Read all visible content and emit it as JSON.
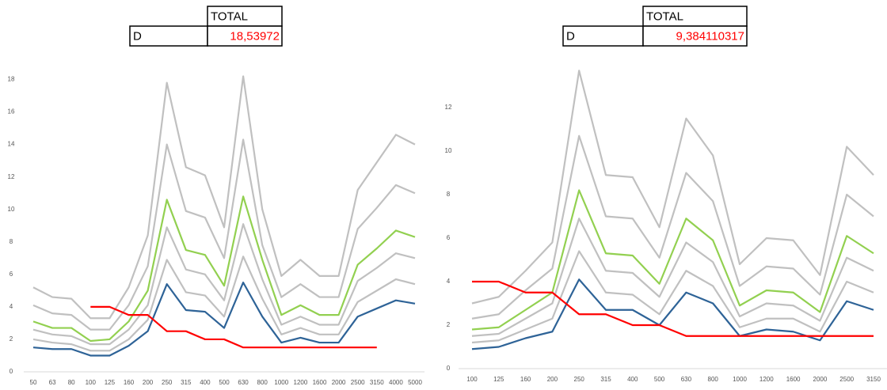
{
  "chart_data": [
    {
      "type": "line",
      "table": {
        "header": "TOTAL",
        "row": "D",
        "value": "18,53972",
        "value_color": "#ff0000"
      },
      "categories": [
        "50",
        "63",
        "80",
        "100",
        "125",
        "160",
        "200",
        "250",
        "315",
        "400",
        "500",
        "630",
        "800",
        "1000",
        "1200",
        "1600",
        "2000",
        "2500",
        "3150",
        "4000",
        "5000"
      ],
      "ylim": [
        0,
        19
      ],
      "yticks": [
        0,
        2,
        4,
        6,
        8,
        10,
        12,
        14,
        16,
        18
      ],
      "grid": false,
      "series": [
        {
          "color": "#c0c0c0",
          "values": [
            5.2,
            4.6,
            4.5,
            3.3,
            3.3,
            5.2,
            8.4,
            17.8,
            12.6,
            12.1,
            8.9,
            18.2,
            10.0,
            5.9,
            6.9,
            5.9,
            5.9,
            11.2,
            12.9,
            14.6,
            14.0
          ]
        },
        {
          "color": "#c0c0c0",
          "values": [
            4.1,
            3.6,
            3.5,
            2.6,
            2.6,
            4.1,
            6.5,
            14.0,
            9.9,
            9.5,
            7.0,
            14.3,
            7.8,
            4.6,
            5.4,
            4.6,
            4.6,
            8.8,
            10.1,
            11.5,
            11.0
          ]
        },
        {
          "color": "#92d050",
          "values": [
            3.1,
            2.7,
            2.7,
            1.9,
            2.0,
            3.1,
            5.0,
            10.6,
            7.5,
            7.2,
            5.3,
            10.8,
            6.9,
            3.5,
            4.1,
            3.5,
            3.5,
            6.6,
            7.6,
            8.7,
            8.3
          ]
        },
        {
          "color": "#c0c0c0",
          "values": [
            2.6,
            2.3,
            2.2,
            1.7,
            1.7,
            2.6,
            4.1,
            8.9,
            6.3,
            6.0,
            4.4,
            9.1,
            5.7,
            2.9,
            3.4,
            2.9,
            2.9,
            5.6,
            6.4,
            7.3,
            7.0
          ]
        },
        {
          "color": "#c0c0c0",
          "values": [
            2.0,
            1.8,
            1.7,
            1.3,
            1.3,
            2.0,
            3.2,
            6.9,
            4.9,
            4.7,
            3.4,
            7.1,
            4.5,
            2.3,
            2.7,
            2.3,
            2.3,
            4.3,
            5.0,
            5.7,
            5.4
          ]
        },
        {
          "color": "#2e6397",
          "values": [
            1.5,
            1.4,
            1.4,
            1.0,
            1.0,
            1.6,
            2.5,
            5.4,
            3.8,
            3.7,
            2.7,
            5.5,
            3.4,
            1.8,
            2.1,
            1.8,
            1.8,
            3.4,
            3.9,
            4.4,
            4.2
          ]
        },
        {
          "color": "#ff0000",
          "values": [
            null,
            null,
            null,
            4,
            4,
            3.5,
            3.5,
            2.5,
            2.5,
            2,
            2,
            1.5,
            1.5,
            1.5,
            1.5,
            1.5,
            1.5,
            1.5,
            1.5,
            null,
            null
          ]
        }
      ]
    },
    {
      "type": "line",
      "table": {
        "header": "TOTAL",
        "row": "D",
        "value": "9,384110317",
        "value_color": "#ff0000"
      },
      "categories": [
        "100",
        "125",
        "160",
        "200",
        "250",
        "315",
        "400",
        "500",
        "630",
        "800",
        "1000",
        "1200",
        "1600",
        "2000",
        "2500",
        "3150"
      ],
      "ylim": [
        0,
        14
      ],
      "yticks": [
        0,
        2,
        4,
        6,
        8,
        10,
        12
      ],
      "grid": false,
      "series": [
        {
          "color": "#c0c0c0",
          "values": [
            3.0,
            3.3,
            4.5,
            5.8,
            13.7,
            8.9,
            8.8,
            6.5,
            11.5,
            9.8,
            4.8,
            6.0,
            5.9,
            4.3,
            10.2,
            8.9
          ]
        },
        {
          "color": "#c0c0c0",
          "values": [
            2.3,
            2.5,
            3.6,
            4.6,
            10.7,
            7.0,
            6.9,
            5.1,
            9.0,
            7.7,
            3.8,
            4.7,
            4.6,
            3.4,
            8.0,
            7.0
          ]
        },
        {
          "color": "#92d050",
          "values": [
            1.8,
            1.9,
            2.7,
            3.5,
            8.2,
            5.3,
            5.2,
            3.9,
            6.9,
            5.9,
            2.9,
            3.6,
            3.5,
            2.6,
            6.1,
            5.3
          ]
        },
        {
          "color": "#c0c0c0",
          "values": [
            1.5,
            1.6,
            2.3,
            3.0,
            6.9,
            4.5,
            4.4,
            3.3,
            5.8,
            4.9,
            2.4,
            3.0,
            2.9,
            2.2,
            5.1,
            4.5
          ]
        },
        {
          "color": "#c0c0c0",
          "values": [
            1.2,
            1.3,
            1.8,
            2.3,
            5.4,
            3.5,
            3.4,
            2.5,
            4.5,
            3.8,
            1.9,
            2.3,
            2.3,
            1.7,
            4.0,
            3.5
          ]
        },
        {
          "color": "#2e6397",
          "values": [
            0.9,
            1.0,
            1.4,
            1.7,
            4.1,
            2.7,
            2.7,
            2.0,
            3.5,
            3.0,
            1.5,
            1.8,
            1.7,
            1.3,
            3.1,
            2.7
          ]
        },
        {
          "color": "#ff0000",
          "values": [
            4,
            4,
            3.5,
            3.5,
            2.5,
            2.5,
            2,
            2,
            1.5,
            1.5,
            1.5,
            1.5,
            1.5,
            1.5,
            1.5,
            1.5
          ]
        }
      ]
    }
  ]
}
